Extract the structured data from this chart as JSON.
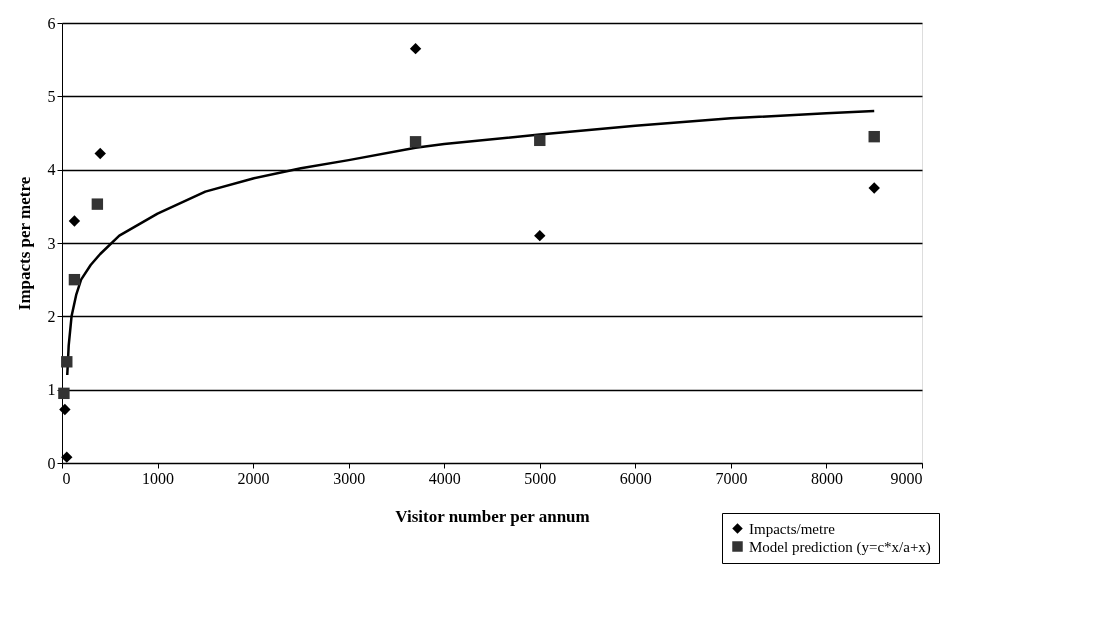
{
  "chart_data": {
    "type": "scatter",
    "xlabel": "Visitor number per annum",
    "ylabel": "Impacts per metre",
    "xlim": [
      0,
      9000
    ],
    "xticks": [
      0,
      1000,
      2000,
      3000,
      4000,
      5000,
      6000,
      7000,
      8000,
      9000
    ],
    "ylim": [
      0,
      6
    ],
    "yticks": [
      0,
      1,
      2,
      3,
      4,
      5,
      6
    ],
    "grid": "y",
    "legend": "bottom right",
    "series": [
      {
        "name": "Impacts/metre",
        "color": "#000000",
        "marker": "diamond",
        "x": [
          50,
          30,
          130,
          400,
          3700,
          5000,
          8500
        ],
        "values": [
          0.08,
          0.73,
          3.3,
          4.22,
          5.65,
          3.1,
          3.75
        ]
      },
      {
        "name": "Model prediction (y=c*x/a+x)",
        "color": "#333333",
        "marker": "square",
        "x": [
          20,
          50,
          130,
          370,
          3700,
          5000,
          8500
        ],
        "values": [
          0.95,
          1.38,
          2.5,
          3.53,
          4.38,
          4.4,
          4.45
        ]
      },
      {
        "type": "line",
        "color": "#000000",
        "line_style": "solid",
        "x": [
          55,
          70,
          100,
          150,
          200,
          300,
          400,
          600,
          800,
          1000,
          1500,
          2000,
          2500,
          3000,
          3700,
          4000,
          5000,
          6000,
          7000,
          8000,
          8500
        ],
        "values": [
          1.2,
          1.6,
          2.0,
          2.3,
          2.5,
          2.7,
          2.85,
          3.1,
          3.25,
          3.4,
          3.7,
          3.88,
          4.02,
          4.13,
          4.3,
          4.35,
          4.48,
          4.6,
          4.7,
          4.77,
          4.8
        ]
      }
    ]
  }
}
